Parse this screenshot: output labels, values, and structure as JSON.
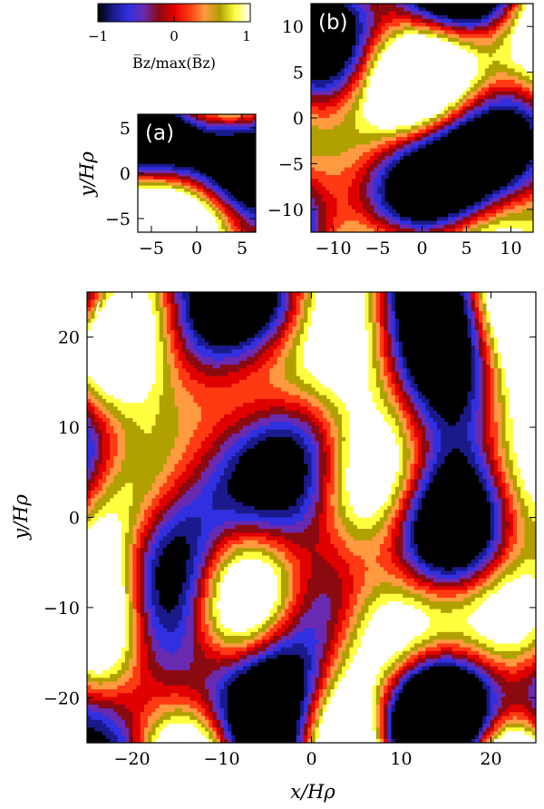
{
  "colors": {
    "map": [
      "#000000",
      "#1a1a8c",
      "#3030e0",
      "#6a2ab0",
      "#8a0a10",
      "#e00000",
      "#ff3a12",
      "#ff9a40",
      "#b0a000",
      "#ffff40",
      "#ffffff"
    ]
  },
  "colorbar": {
    "ticks": [
      "−1",
      "0",
      "1"
    ],
    "label": "B̅z/max(B̅z)",
    "range": [
      -1,
      1
    ]
  },
  "chart_data": [
    {
      "type": "heatmap",
      "panel": "(a)",
      "xlabel": "",
      "ylabel": "y/Hρ",
      "xlim": [
        -6.5,
        6.5
      ],
      "ylim": [
        -6.5,
        6.5
      ],
      "xticks": [
        "−5",
        "0",
        "5"
      ],
      "xtick_values": [
        -5,
        0,
        5
      ],
      "yticks": [
        "−5",
        "0",
        "5"
      ],
      "ytick_values": [
        -5,
        0,
        5
      ],
      "value_range": [
        -1,
        1
      ]
    },
    {
      "type": "heatmap",
      "panel": "(b)",
      "xlabel": "",
      "ylabel": "",
      "xlim": [
        -12.5,
        12.5
      ],
      "ylim": [
        -12.5,
        12.5
      ],
      "xticks": [
        "−10",
        "−5",
        "0",
        "5",
        "10"
      ],
      "xtick_values": [
        -10,
        -5,
        0,
        5,
        10
      ],
      "yticks": [
        "−10",
        "−5",
        "0",
        "5",
        "10"
      ],
      "ytick_values": [
        -10,
        -5,
        0,
        5,
        10
      ],
      "value_range": [
        -1,
        1
      ]
    },
    {
      "type": "heatmap",
      "panel": "(c)",
      "xlabel": "x/Hρ",
      "ylabel": "y/Hρ",
      "xlim": [
        -25,
        25
      ],
      "ylim": [
        -25,
        25
      ],
      "xticks": [
        "−20",
        "−10",
        "0",
        "10",
        "20"
      ],
      "xtick_values": [
        -20,
        -10,
        0,
        10,
        20
      ],
      "yticks": [
        "−20",
        "−10",
        "0",
        "10",
        "20"
      ],
      "ytick_values": [
        -20,
        -10,
        0,
        10,
        20
      ],
      "value_range": [
        -1,
        1
      ]
    }
  ]
}
